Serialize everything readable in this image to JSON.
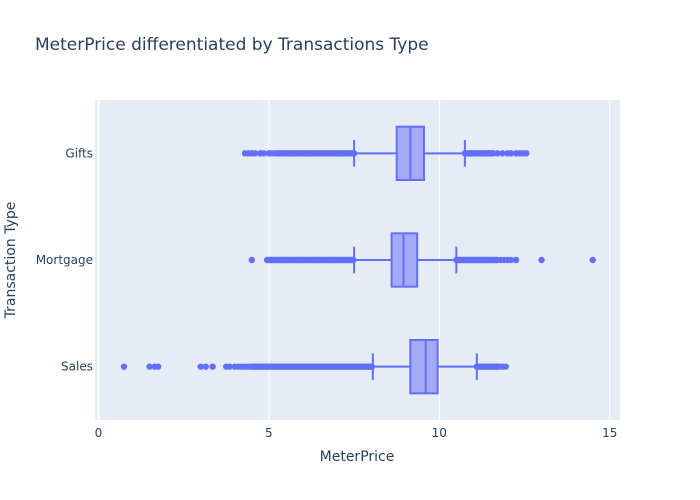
{
  "chart_data": {
    "type": "box",
    "orientation": "horizontal",
    "title": "MeterPrice differentiated by Transactions Type",
    "xlabel": "MeterPrice",
    "ylabel": "Transaction Type",
    "xlim": [
      -0.1,
      15.3
    ],
    "xticks": [
      0,
      5,
      10,
      15
    ],
    "categories": [
      "Gifts",
      "Mortgage",
      "Sales"
    ],
    "grid": true,
    "colors": {
      "plot_bg": "#e5ecf6",
      "box_line": "#636efa",
      "box_fill": "#a5aaf8",
      "text": "#2a3f5f",
      "grid": "#ffffff"
    },
    "boxes": [
      {
        "category": "Gifts",
        "lower_fence": 7.5,
        "q1": 8.75,
        "median": 9.15,
        "q3": 9.55,
        "upper_fence": 10.75,
        "outliers_low_range": [
          5.3,
          7.5
        ],
        "outliers_low_points": [
          4.3,
          4.4,
          4.5,
          4.6,
          4.75,
          4.85,
          5.0,
          5.05,
          5.15,
          5.25
        ],
        "outliers_high_range": [
          10.75,
          11.6
        ],
        "outliers_high_points": [
          11.7,
          11.85,
          12.0,
          12.1,
          12.25,
          12.35,
          12.45,
          12.55
        ]
      },
      {
        "category": "Mortgage",
        "lower_fence": 7.5,
        "q1": 8.6,
        "median": 8.95,
        "q3": 9.35,
        "upper_fence": 10.5,
        "outliers_low_range": [
          5.0,
          7.5
        ],
        "outliers_low_points": [
          4.5,
          4.95
        ],
        "outliers_high_range": [
          10.5,
          11.7
        ],
        "outliers_high_points": [
          11.8,
          11.9,
          12.0,
          12.1,
          12.25,
          13.0,
          14.5
        ]
      },
      {
        "category": "Sales",
        "lower_fence": 8.05,
        "q1": 9.15,
        "median": 9.6,
        "q3": 9.95,
        "upper_fence": 11.1,
        "outliers_low_range": [
          4.5,
          8.05
        ],
        "outliers_low_points": [
          0.75,
          1.5,
          1.65,
          1.75,
          3.0,
          3.15,
          3.35,
          3.75,
          3.85,
          4.0,
          4.1,
          4.2,
          4.3,
          4.4
        ],
        "outliers_high_range": [
          11.1,
          11.7
        ],
        "outliers_high_points": [
          11.75,
          11.85,
          11.95
        ]
      }
    ]
  }
}
